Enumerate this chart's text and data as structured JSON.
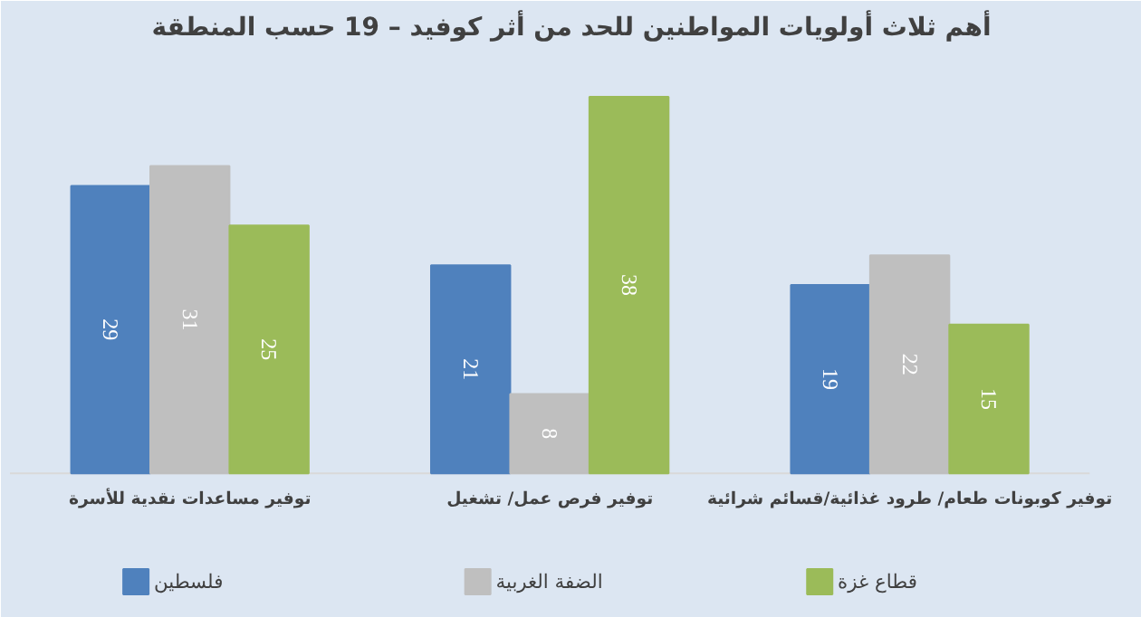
{
  "chart_data": {
    "type": "bar",
    "title": "أهم ثلاث أولويات المواطنين للحد من أثر كوفيد – 19 حسب المنطقة",
    "categories": [
      "توفير مساعدات نقدية للأسرة",
      "توفير فرص عمل/ تشغيل",
      "توفير كوبونات طعام/ طرود غذائية/قسائم شرائية"
    ],
    "series": [
      {
        "name": "فلسطين",
        "color": "#4f81bd",
        "values": [
          29,
          21,
          19
        ]
      },
      {
        "name": "الضفة الغربية",
        "color": "#bfbfbf",
        "values": [
          31,
          8,
          22
        ]
      },
      {
        "name": "قطاع غزة",
        "color": "#9bbb59",
        "values": [
          25,
          38,
          15
        ]
      }
    ],
    "data_labels": true,
    "legend": "bottom",
    "grid": false
  }
}
